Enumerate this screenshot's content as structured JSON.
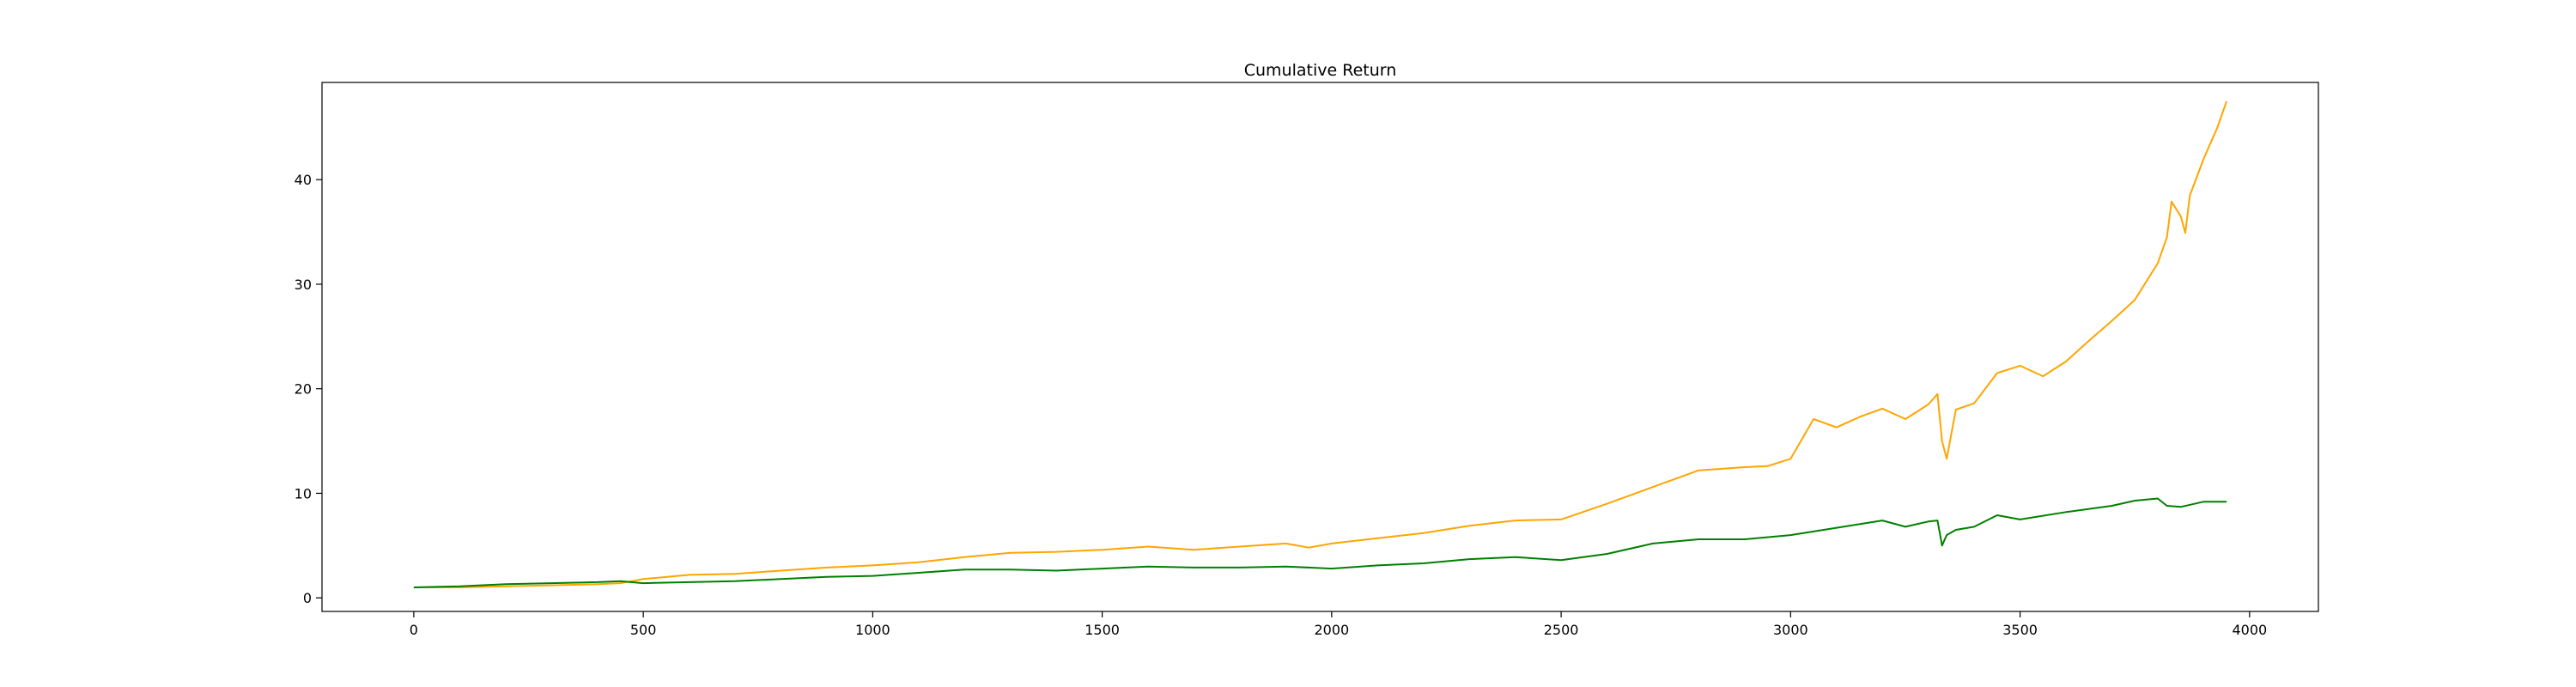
{
  "chart_data": {
    "type": "line",
    "title": "Cumulative Return",
    "xlabel": "",
    "ylabel": "",
    "xlim": [
      -200,
      4150
    ],
    "ylim": [
      -1.3,
      49.3
    ],
    "xticks": [
      0,
      500,
      1000,
      1500,
      2000,
      2500,
      3000,
      3500,
      4000
    ],
    "yticks": [
      0,
      10,
      20,
      30,
      40
    ],
    "grid": false,
    "legend": false,
    "series": [
      {
        "color": "#ffa500",
        "x": [
          0,
          100,
          200,
          300,
          400,
          450,
          500,
          600,
          700,
          800,
          900,
          1000,
          1100,
          1200,
          1300,
          1400,
          1500,
          1600,
          1700,
          1800,
          1900,
          1950,
          2000,
          2100,
          2200,
          2300,
          2400,
          2500,
          2600,
          2700,
          2800,
          2900,
          2950,
          3000,
          3050,
          3100,
          3150,
          3200,
          3250,
          3300,
          3320,
          3330,
          3340,
          3360,
          3400,
          3450,
          3500,
          3550,
          3600,
          3650,
          3700,
          3750,
          3800,
          3820,
          3830,
          3850,
          3860,
          3870,
          3900,
          3930,
          3950
        ],
        "y": [
          1.0,
          1.0,
          1.1,
          1.2,
          1.3,
          1.4,
          1.8,
          2.2,
          2.3,
          2.6,
          2.9,
          3.1,
          3.4,
          3.9,
          4.3,
          4.4,
          4.6,
          4.9,
          4.6,
          4.9,
          5.2,
          4.8,
          5.2,
          5.7,
          6.2,
          6.9,
          7.4,
          7.5,
          9.0,
          10.6,
          12.2,
          12.5,
          12.6,
          13.3,
          17.1,
          16.3,
          17.3,
          18.1,
          17.1,
          18.5,
          19.5,
          15.0,
          13.3,
          18.0,
          18.6,
          21.5,
          22.2,
          21.2,
          22.6,
          24.6,
          26.5,
          28.5,
          32.0,
          34.5,
          37.9,
          36.5,
          34.9,
          38.5,
          42.0,
          45.0,
          47.5
        ]
      },
      {
        "color": "#008000",
        "x": [
          0,
          100,
          200,
          300,
          400,
          450,
          500,
          600,
          700,
          800,
          900,
          1000,
          1100,
          1200,
          1300,
          1400,
          1500,
          1600,
          1700,
          1800,
          1900,
          2000,
          2100,
          2200,
          2300,
          2400,
          2500,
          2600,
          2700,
          2800,
          2900,
          3000,
          3100,
          3200,
          3250,
          3300,
          3320,
          3330,
          3340,
          3360,
          3400,
          3450,
          3500,
          3600,
          3700,
          3750,
          3800,
          3820,
          3850,
          3900,
          3950
        ],
        "y": [
          1.0,
          1.1,
          1.3,
          1.4,
          1.5,
          1.6,
          1.4,
          1.5,
          1.6,
          1.8,
          2.0,
          2.1,
          2.4,
          2.7,
          2.7,
          2.6,
          2.8,
          3.0,
          2.9,
          2.9,
          3.0,
          2.8,
          3.1,
          3.3,
          3.7,
          3.9,
          3.6,
          4.2,
          5.2,
          5.6,
          5.6,
          6.0,
          6.7,
          7.4,
          6.8,
          7.3,
          7.4,
          5.0,
          6.0,
          6.5,
          6.8,
          7.9,
          7.5,
          8.2,
          8.8,
          9.3,
          9.5,
          8.8,
          8.7,
          9.2,
          9.2
        ]
      }
    ]
  }
}
